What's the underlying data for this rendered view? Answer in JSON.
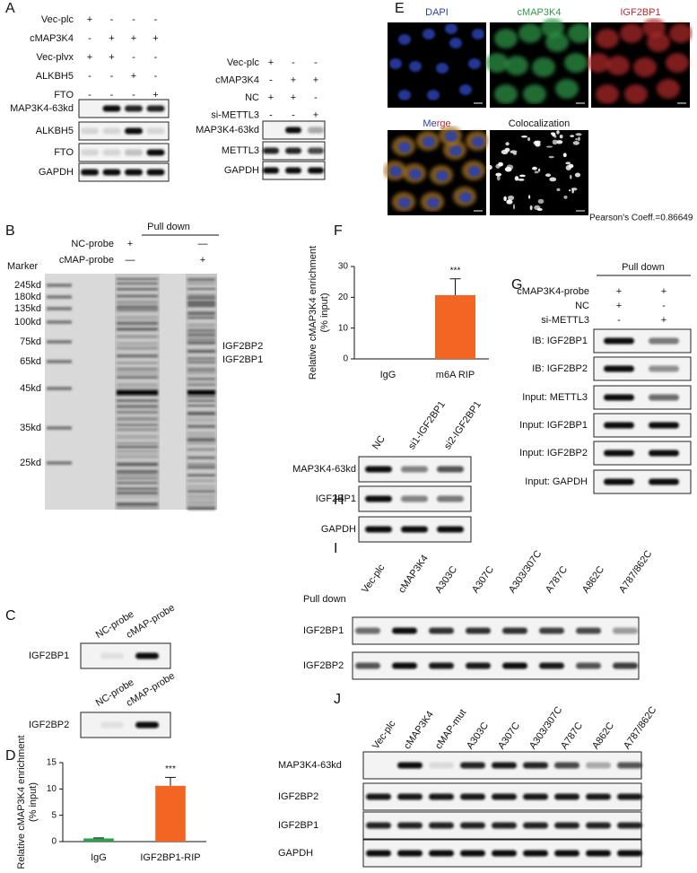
{
  "panels": {
    "A": {
      "label": "A",
      "left": {
        "conditions": [
          {
            "name": "Vec-plc",
            "signs": [
              "+",
              "-",
              "-",
              "-"
            ]
          },
          {
            "name": "cMAP3K4",
            "signs": [
              "-",
              "+",
              "+",
              "+"
            ]
          },
          {
            "name": "Vec-plvx",
            "signs": [
              "+",
              "+",
              "-",
              "-"
            ]
          },
          {
            "name": "ALKBH5",
            "signs": [
              "-",
              "-",
              "+",
              "-"
            ]
          },
          {
            "name": "FTO",
            "signs": [
              "-",
              "-",
              "-",
              "+"
            ]
          }
        ],
        "blots": [
          "MAP3K4-63kd",
          "ALKBH5",
          "FTO",
          "GAPDH"
        ]
      },
      "right": {
        "conditions": [
          {
            "name": "Vec-plc",
            "signs": [
              "+",
              "-",
              "-"
            ]
          },
          {
            "name": "cMAP3K4",
            "signs": [
              "-",
              "+",
              "+"
            ]
          },
          {
            "name": "NC",
            "signs": [
              "+",
              "+",
              "-"
            ]
          },
          {
            "name": "si-METTL3",
            "signs": [
              "-",
              "-",
              "+"
            ]
          }
        ],
        "blots": [
          "MAP3K4-63kd",
          "METTL3",
          "GAPDH"
        ]
      }
    },
    "B": {
      "label": "B",
      "pull_down": "Pull down",
      "conditions": [
        {
          "name": "NC-probe",
          "signs": [
            "+",
            "—"
          ]
        },
        {
          "name": "cMAP-probe",
          "signs": [
            "—",
            "+"
          ]
        }
      ],
      "marker_title": "Marker",
      "markers": [
        "245kd",
        "180kd",
        "135kd",
        "100kd",
        "75kd",
        "65kd",
        "45kd",
        "35kd",
        "25kd"
      ],
      "annotations": [
        "IGF2BP2",
        "IGF2BP1"
      ]
    },
    "C": {
      "label": "C",
      "blots": [
        {
          "name": "IGF2BP1",
          "lanes": [
            "NC-probe",
            "cMAP-probe"
          ]
        },
        {
          "name": "IGF2BP2",
          "lanes": [
            "NC-probe",
            "cMAP-probe"
          ]
        }
      ]
    },
    "E": {
      "label": "E",
      "channels": [
        "DAPI",
        "cMAP3K4",
        "IGF2BP1"
      ],
      "merge": [
        "Me",
        "rge"
      ],
      "colocalization": "Colocalization",
      "pearson": "Pearson's Coeff.=0.86649"
    },
    "G": {
      "label": "G",
      "pull_down": "Pull down",
      "conditions": [
        {
          "name": "cMAP3K4-probe",
          "signs": [
            "+",
            "+"
          ]
        },
        {
          "name": "NC",
          "signs": [
            "+",
            "-"
          ]
        },
        {
          "name": "si-METTL3",
          "signs": [
            "-",
            "+"
          ]
        }
      ],
      "blots": [
        "IB: IGF2BP1",
        "IB: IGF2BP2",
        "Input: METTL3",
        "Input: IGF2BP1",
        "Input: IGF2BP2",
        "Input: GAPDH"
      ]
    },
    "H": {
      "label": "H",
      "lanes": [
        "NC",
        "si1-IGF2BP1",
        "si2-IGF2BP1"
      ],
      "blots": [
        "MAP3K4-63kd",
        "IGF2BP1",
        "GAPDH"
      ]
    },
    "I": {
      "label": "I",
      "pull_down": "Pull down",
      "lanes": [
        "Vec-plc",
        "cMAP3K4",
        "A303C",
        "A307C",
        "A303/307C",
        "A787C",
        "A862C",
        "A787/862C"
      ],
      "blots": [
        "IGF2BP1",
        "IGF2BP2"
      ]
    },
    "J": {
      "label": "J",
      "lanes": [
        "Vec-plc",
        "cMAP3K4",
        "cMAP-mut",
        "A303C",
        "A307C",
        "A303/307C",
        "A787C",
        "A862C",
        "A787/862C"
      ],
      "blots": [
        "MAP3K4-63kd",
        "IGF2BP2",
        "IGF2BP1",
        "GAPDH"
      ]
    }
  },
  "chart_data": [
    {
      "type": "bar",
      "panel_label": "D",
      "ylabel": [
        "Relative cMAP3K4 enrichment",
        "(% input)"
      ],
      "categories": [
        "IgG",
        "IGF2BP1-RIP"
      ],
      "values": [
        0.6,
        10.6
      ],
      "errors": [
        0.1,
        1.6
      ],
      "significance": [
        null,
        "***"
      ],
      "colors": [
        "#2e9e4f",
        "#f26522"
      ],
      "ylim": [
        0,
        15
      ],
      "yticks": [
        0,
        5,
        10,
        15
      ]
    },
    {
      "type": "bar",
      "panel_label": "F",
      "ylabel": [
        "Relative cMAP3K4 enrichment",
        "(% input)"
      ],
      "categories": [
        "IgG",
        "m6A RIP"
      ],
      "values": [
        0,
        20.7
      ],
      "errors": [
        null,
        5.3
      ],
      "significance": [
        null,
        "***"
      ],
      "colors": [
        "#f26522",
        "#f26522"
      ],
      "ylim": [
        0,
        30
      ],
      "yticks": [
        0,
        10,
        20,
        30
      ]
    }
  ]
}
